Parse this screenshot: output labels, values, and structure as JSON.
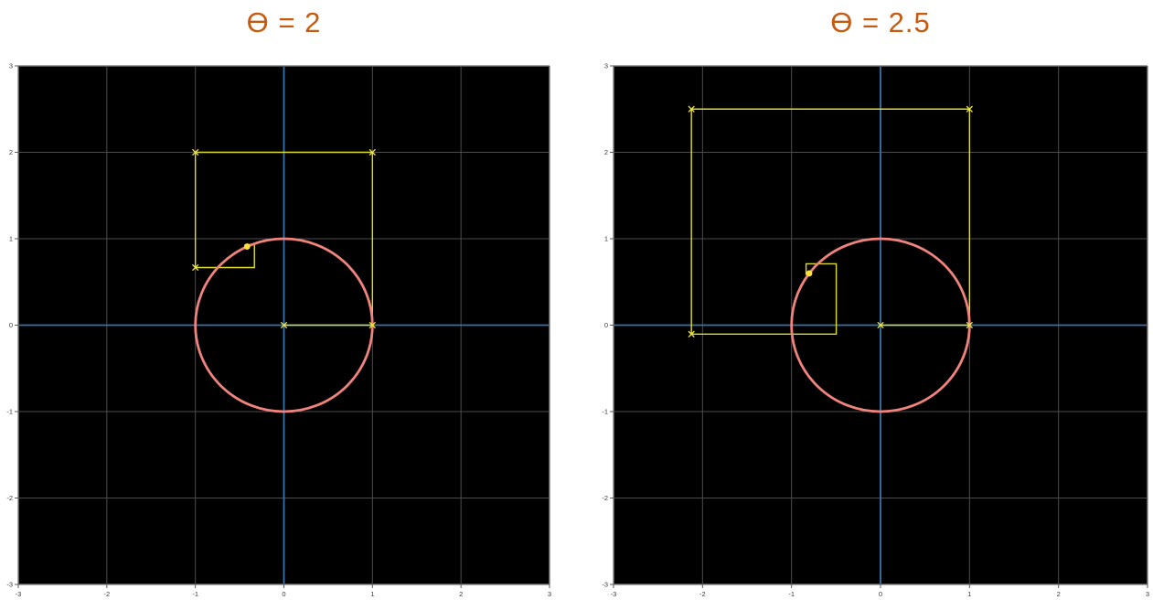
{
  "figure": {
    "name": "euler-power-series-spiral-comparison",
    "page_background": "#ffffff",
    "style": {
      "plot_bg": "#000000",
      "grid_color": "#4d4d4d",
      "spine_color": "#5a5a5a",
      "axis_color": "#3973ac",
      "circle_color": "#f0837d",
      "spiral_color": "#dedd27",
      "marker_color": "#f2e93a",
      "dot_color": "#ffe13a",
      "tick_color": "#3a3a3a",
      "title_color": "#c55a11"
    }
  },
  "chart_data": [
    {
      "type": "line",
      "title": "Ɵ = 2",
      "theta": 2,
      "xlim": [
        -3,
        3
      ],
      "ylim": [
        -3,
        3
      ],
      "xticks": [
        -3,
        -2,
        -1,
        0,
        1,
        2,
        3
      ],
      "yticks": [
        3,
        2,
        1,
        0,
        -1,
        -2,
        -3
      ],
      "grid": true,
      "legend": "none",
      "series": [
        {
          "name": "unit-circle",
          "kind": "circle",
          "center": [
            0,
            0
          ],
          "radius": 1
        },
        {
          "name": "power-series-spiral",
          "kind": "polyline",
          "points": [
            [
              0,
              0
            ],
            [
              1,
              0
            ],
            [
              1,
              2
            ],
            [
              -1,
              2
            ],
            [
              -1,
              0.6667
            ],
            [
              -0.3333,
              0.6667
            ],
            [
              -0.3333,
              0.9333
            ],
            [
              -0.4222,
              0.9333
            ],
            [
              -0.4222,
              0.9079
            ],
            [
              -0.4159,
              0.9079
            ],
            [
              -0.4159,
              0.9093
            ],
            [
              -0.4161,
              0.9093
            ]
          ]
        },
        {
          "name": "corner-markers",
          "kind": "x-markers",
          "points": [
            [
              0,
              0
            ],
            [
              1,
              0
            ],
            [
              1,
              2
            ],
            [
              -1,
              2
            ],
            [
              -1,
              0.6667
            ]
          ]
        },
        {
          "name": "limit-point",
          "kind": "dot",
          "point": [
            -0.4161,
            0.9093
          ]
        }
      ]
    },
    {
      "type": "line",
      "title": "Ɵ = 2.5",
      "theta": 2.5,
      "xlim": [
        -3,
        3
      ],
      "ylim": [
        -3,
        3
      ],
      "xticks": [
        -3,
        -2,
        -1,
        0,
        1,
        2,
        3
      ],
      "yticks": [
        3,
        2,
        1,
        0,
        -1,
        -2,
        -3
      ],
      "grid": true,
      "legend": "none",
      "series": [
        {
          "name": "unit-circle",
          "kind": "circle",
          "center": [
            0,
            0
          ],
          "radius": 1
        },
        {
          "name": "power-series-spiral",
          "kind": "polyline",
          "points": [
            [
              0,
              0
            ],
            [
              1,
              0
            ],
            [
              1,
              2.5
            ],
            [
              -2.125,
              2.5
            ],
            [
              -2.125,
              -0.1042
            ],
            [
              -0.4974,
              -0.1042
            ],
            [
              -0.4974,
              0.7096
            ],
            [
              -0.8365,
              0.7096
            ],
            [
              -0.8365,
              0.5885
            ],
            [
              -0.7986,
              0.5885
            ],
            [
              -0.7986,
              0.599
            ],
            [
              -0.8011,
              0.5985
            ]
          ]
        },
        {
          "name": "corner-markers",
          "kind": "x-markers",
          "points": [
            [
              0,
              0
            ],
            [
              1,
              0
            ],
            [
              1,
              2.5
            ],
            [
              -2.125,
              2.5
            ],
            [
              -2.125,
              -0.1042
            ]
          ]
        },
        {
          "name": "limit-point",
          "kind": "dot",
          "point": [
            -0.8011,
            0.5985
          ]
        }
      ]
    }
  ]
}
